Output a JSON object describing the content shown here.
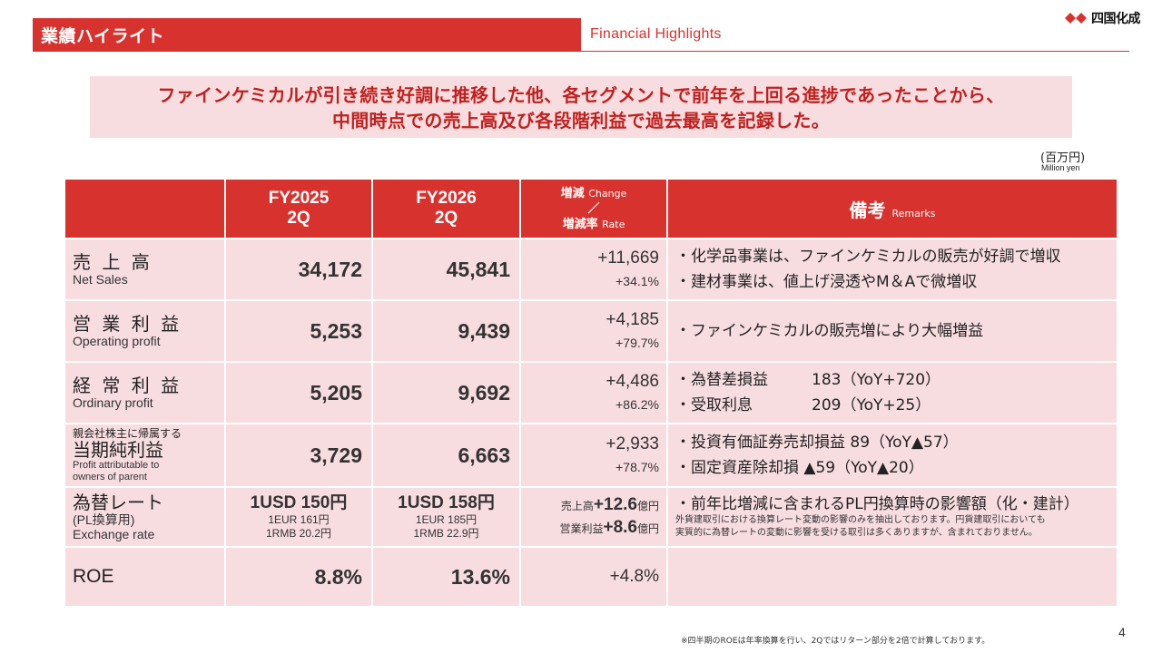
{
  "header": {
    "title": "業績ハイライト",
    "subtitle": "Financial Highlights",
    "logo_text": "四国化成"
  },
  "banner": {
    "line1": "ファインケミカルが引き続き好調に推移した他、各セグメントで前年を上回る進捗であったことから、",
    "line2": "中間時点での売上高及び各段階利益で過去最高を記録した。"
  },
  "unit": {
    "jp": "(百万円)",
    "en": "Million yen"
  },
  "table": {
    "headers": {
      "fy2025_1": "FY2025",
      "fy2025_2": "2Q",
      "fy2026_1": "FY2026",
      "fy2026_2": "2Q",
      "change_jp": "増減",
      "change_en": "Change",
      "slash": "／",
      "rate_jp": "増減率",
      "rate_en": "Rate",
      "remarks_jp": "備考",
      "remarks_en": "Remarks"
    },
    "rows": {
      "net_sales": {
        "label_jp": "売 上 高",
        "label_en": "Net Sales",
        "fy2025": "34,172",
        "fy2026": "45,841",
        "change": "+11,669",
        "rate": "+34.1%",
        "remark1": "・化学品事業は、ファインケミカルの販売が好調で増収",
        "remark2": "・建材事業は、値上げ浸透やM＆Aで微増収"
      },
      "operating_profit": {
        "label_jp": "営 業 利 益",
        "label_en": "Operating profit",
        "fy2025": "5,253",
        "fy2026": "9,439",
        "change": "+4,185",
        "rate": "+79.7%",
        "remark1": "・ファインケミカルの販売増により大幅増益"
      },
      "ordinary_profit": {
        "label_jp": "経 常 利 益",
        "label_en": "Ordinary profit",
        "fy2025": "5,205",
        "fy2026": "9,692",
        "change": "+4,486",
        "rate": "+86.2%",
        "remark1a": "・為替差損益",
        "remark1b": "183（YoY+720）",
        "remark2a": "・受取利息",
        "remark2b": "209（YoY+25）"
      },
      "net_income": {
        "label_small": "親会社株主に帰属する",
        "label_jp": "当期純利益",
        "label_en1": "Profit attributable to",
        "label_en2": "owners of parent",
        "fy2025": "3,729",
        "fy2026": "6,663",
        "change": "+2,933",
        "rate": "+78.7%",
        "remark1": "・投資有価証券売却損益 89（YoY▲57）",
        "remark2": "・固定資産除却損 ▲59（YoY▲20）"
      },
      "exchange_rate": {
        "label_jp": "為替レート",
        "label_sub": "(PL換算用)",
        "label_en": "Exchange rate",
        "fy2025_usd": "1USD 150円",
        "fy2025_eur": "1EUR 161円",
        "fy2025_rmb": "1RMB 20.2円",
        "fy2026_usd": "1USD 158円",
        "fy2026_eur": "1EUR 185円",
        "fy2026_rmb": "1RMB 22.9円",
        "chg1_label": "売上高",
        "chg1_val": "+12.6",
        "chg1_unit": "億円",
        "chg2_label": "営業利益",
        "chg2_val": "+8.6",
        "chg2_unit": "億円",
        "remark1": "・前年比増減に含まれるPL円換算時の影響額（化・建計）",
        "remark2": "外貨建取引における換算レート変動の影響のみを抽出しております。円貨建取引においても",
        "remark3": "実質的に為替レートの変動に影響を受ける取引は多くありますが、含まれておりません。"
      },
      "roe": {
        "label": "ROE",
        "fy2025": "8.8%",
        "fy2026": "13.6%",
        "change": "+4.8%"
      }
    }
  },
  "footnote": "※四半期のROEは年率換算を行い、2Qではリターン部分を2倍で計算しております。",
  "page_number": "4",
  "colors": {
    "accent": "#d8322e",
    "light_fill": "#f8dde0",
    "banner_text": "#c0201e"
  }
}
